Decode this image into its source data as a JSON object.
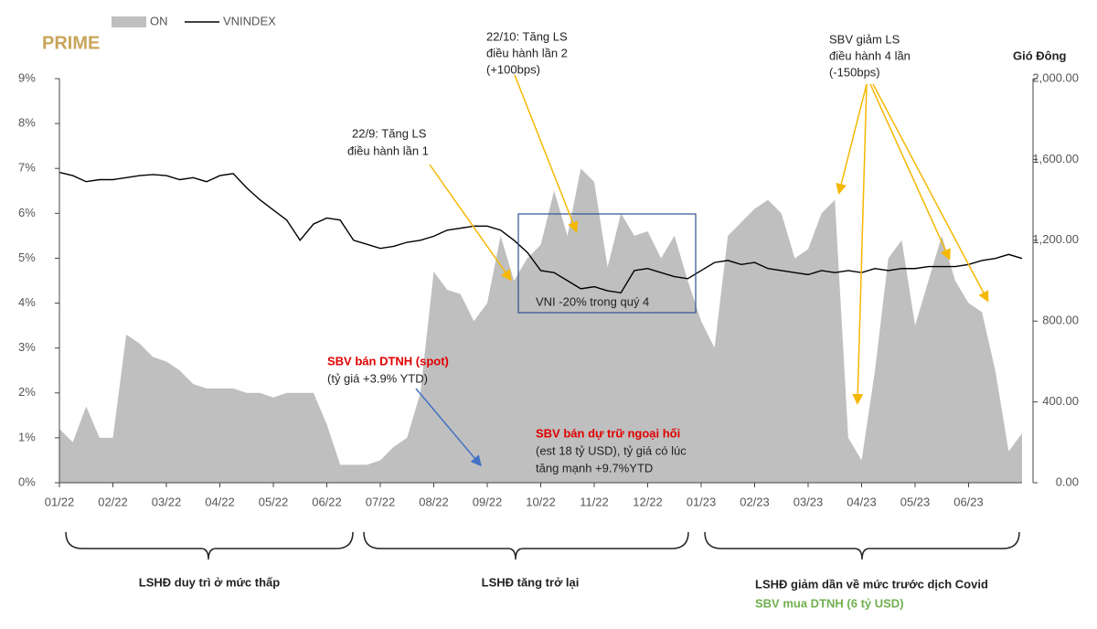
{
  "chart_data": {
    "type": "area-line",
    "brand": "PRIME",
    "source": "Gió Đông",
    "categories": [
      "01/22",
      null,
      null,
      null,
      "02/22",
      null,
      null,
      null,
      "03/22",
      null,
      null,
      null,
      "04/22",
      null,
      null,
      null,
      "05/22",
      null,
      null,
      null,
      "06/22",
      null,
      null,
      null,
      "07/22",
      null,
      null,
      null,
      "08/22",
      null,
      null,
      null,
      "09/22",
      null,
      null,
      null,
      "10/22",
      null,
      null,
      null,
      "11/22",
      null,
      null,
      null,
      "12/22",
      null,
      null,
      null,
      "01/23",
      null,
      null,
      null,
      "02/23",
      null,
      null,
      null,
      "03/23",
      null,
      null,
      null,
      "04/23",
      null,
      null,
      null,
      "05/23",
      null,
      null,
      null,
      "06/23",
      null,
      null,
      null,
      null
    ],
    "series": [
      {
        "name": "ON",
        "color": "#bfbfbf",
        "axis": "y",
        "values": [
          1.2,
          0.9,
          1.7,
          1.0,
          1.0,
          3.3,
          3.1,
          2.8,
          2.7,
          2.5,
          2.2,
          2.1,
          2.1,
          2.1,
          2.0,
          2.0,
          1.9,
          2.0,
          2.0,
          2.0,
          1.3,
          0.4,
          0.4,
          0.4,
          0.5,
          0.8,
          1.0,
          2.0,
          4.7,
          4.3,
          4.2,
          3.6,
          4.0,
          5.5,
          4.5,
          5.0,
          5.3,
          6.5,
          5.5,
          7.0,
          6.7,
          4.8,
          6.0,
          5.5,
          5.6,
          5.0,
          5.5,
          4.5,
          3.6,
          3.0,
          5.5,
          5.8,
          6.1,
          6.3,
          6.0,
          5.0,
          5.2,
          6.0,
          6.3,
          1.0,
          0.5,
          2.5,
          5.0,
          5.4,
          3.5,
          4.5,
          5.5,
          4.5,
          4.0,
          3.8,
          2.5,
          0.7,
          1.1
        ]
      },
      {
        "name": "VNINDEX",
        "color": "#000000",
        "axis": "y2",
        "values": [
          1536,
          1520,
          1490,
          1500,
          1500,
          1510,
          1520,
          1525,
          1520,
          1500,
          1510,
          1490,
          1520,
          1530,
          1460,
          1400,
          1350,
          1300,
          1200,
          1280,
          1310,
          1300,
          1200,
          1180,
          1160,
          1170,
          1190,
          1200,
          1220,
          1250,
          1260,
          1270,
          1270,
          1250,
          1200,
          1140,
          1050,
          1040,
          1000,
          960,
          970,
          950,
          940,
          1050,
          1060,
          1040,
          1020,
          1010,
          1050,
          1090,
          1100,
          1080,
          1090,
          1060,
          1050,
          1040,
          1030,
          1050,
          1040,
          1050,
          1040,
          1060,
          1050,
          1060,
          1060,
          1070,
          1070,
          1070,
          1080,
          1100,
          1110,
          1130,
          1110
        ]
      }
    ],
    "ylim": [
      0,
      9
    ],
    "yticks": [
      {
        "value": 0,
        "label": "0%"
      },
      {
        "value": 1,
        "label": "1%"
      },
      {
        "value": 2,
        "label": "2%"
      },
      {
        "value": 3,
        "label": "3%"
      },
      {
        "value": 4,
        "label": "4%"
      },
      {
        "value": 5,
        "label": "5%"
      },
      {
        "value": 6,
        "label": "6%"
      },
      {
        "value": 7,
        "label": "7%"
      },
      {
        "value": 8,
        "label": "8%"
      },
      {
        "value": 9,
        "label": "9%"
      }
    ],
    "y2lim": [
      0,
      2000
    ],
    "y2ticks": [
      {
        "value": 0,
        "label": "0.00"
      },
      {
        "value": 400,
        "label": "400.00"
      },
      {
        "value": 800,
        "label": "800.00"
      },
      {
        "value": 1200,
        "label": "1,200.00"
      },
      {
        "value": 1600,
        "label": "1,600.00"
      },
      {
        "value": 2000,
        "label": "2,000.00"
      }
    ],
    "legend": "top-left",
    "annotations": [
      {
        "lines": [
          "22/9: Tăng LS",
          "điều hành lần 1"
        ]
      },
      {
        "lines": [
          "22/10: Tăng LS",
          "điều hành lần 2",
          "(+100bps)"
        ]
      },
      {
        "lines": [
          "SBV giảm LS",
          "điều hành 4 lần",
          "(-150bps)"
        ]
      },
      {
        "lines": [
          "VNI -20% trong quý 4"
        ]
      },
      {
        "lines": [
          "SBV bán DTNH (spot)",
          "(tỷ giá +3.9% YTD)"
        ]
      },
      {
        "lines": [
          "SBV bán dự trữ ngoại hối",
          "(est 18 tỷ USD), tỷ giá có lúc",
          "tăng mạnh +9.7%YTD"
        ]
      }
    ],
    "periods": [
      {
        "lines": [
          "LSHĐ duy trì ở mức thấp"
        ]
      },
      {
        "lines": [
          "LSHĐ tăng trở lại"
        ]
      },
      {
        "lines": [
          "LSHĐ giảm dần  về mức trước dịch Covid",
          "SBV mua DTNH (6 tỷ USD)"
        ]
      }
    ]
  }
}
